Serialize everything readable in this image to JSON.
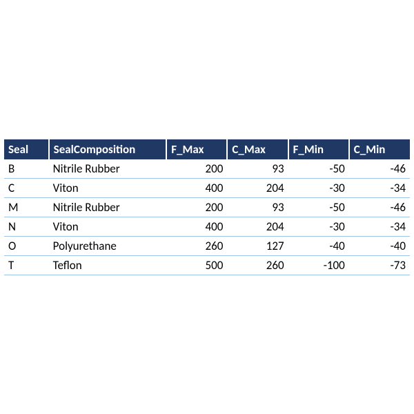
{
  "table": {
    "header_bg": "#1f3864",
    "header_fg": "#ffffff",
    "header_fontsize": 17,
    "row_fontsize": 17,
    "row_border_color": "#9cc2e5",
    "text_color": "#000000",
    "columns": [
      {
        "key": "seal",
        "label": "Seal",
        "align": "left"
      },
      {
        "key": "comp",
        "label": "SealComposition",
        "align": "left"
      },
      {
        "key": "fmax",
        "label": "F_Max",
        "align": "right"
      },
      {
        "key": "cmax",
        "label": "C_Max",
        "align": "right"
      },
      {
        "key": "fmin",
        "label": "F_Min",
        "align": "right"
      },
      {
        "key": "cmin",
        "label": "C_Min",
        "align": "right"
      }
    ],
    "rows": [
      {
        "seal": "B",
        "comp": "Nitrile Rubber",
        "fmax": "200",
        "cmax": "93",
        "fmin": "-50",
        "cmin": "-46"
      },
      {
        "seal": "C",
        "comp": "Viton",
        "fmax": "400",
        "cmax": "204",
        "fmin": "-30",
        "cmin": "-34"
      },
      {
        "seal": "M",
        "comp": "Nitrile Rubber",
        "fmax": "200",
        "cmax": "93",
        "fmin": "-50",
        "cmin": "-46"
      },
      {
        "seal": "N",
        "comp": "Viton",
        "fmax": "400",
        "cmax": "204",
        "fmin": "-30",
        "cmin": "-34"
      },
      {
        "seal": "O",
        "comp": "Polyurethane",
        "fmax": "260",
        "cmax": "127",
        "fmin": "-40",
        "cmin": "-40"
      },
      {
        "seal": "T",
        "comp": "Teflon",
        "fmax": "500",
        "cmax": "260",
        "fmin": "-100",
        "cmin": "-73"
      }
    ]
  }
}
